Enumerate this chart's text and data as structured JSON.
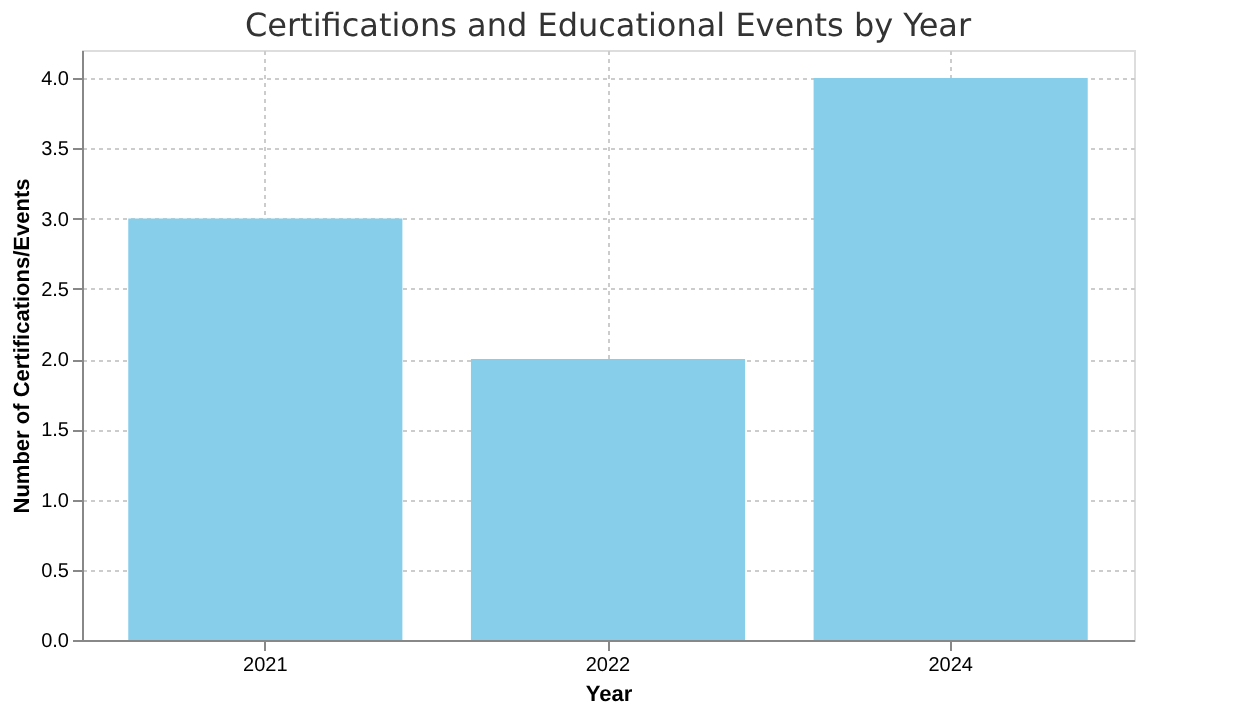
{
  "chart_data": {
    "type": "bar",
    "title": "Certifications and Educational Events by Year",
    "xlabel": "Year",
    "ylabel": "Number of Certifications/Events",
    "categories": [
      "2021",
      "2022",
      "2024"
    ],
    "values": [
      3,
      2,
      4
    ],
    "color": "#87ceeb",
    "ylim": [
      0,
      4.2
    ],
    "yticks": [
      {
        "value": 0,
        "label": "0.0"
      },
      {
        "value": 0.5,
        "label": "0.5"
      },
      {
        "value": 1,
        "label": "1.0"
      },
      {
        "value": 1.5,
        "label": "1.5"
      },
      {
        "value": 2,
        "label": "2.0"
      },
      {
        "value": 2.5,
        "label": "2.5"
      },
      {
        "value": 3,
        "label": "3.0"
      },
      {
        "value": 3.5,
        "label": "3.5"
      },
      {
        "value": 4,
        "label": "4.0"
      }
    ],
    "grid": true
  }
}
